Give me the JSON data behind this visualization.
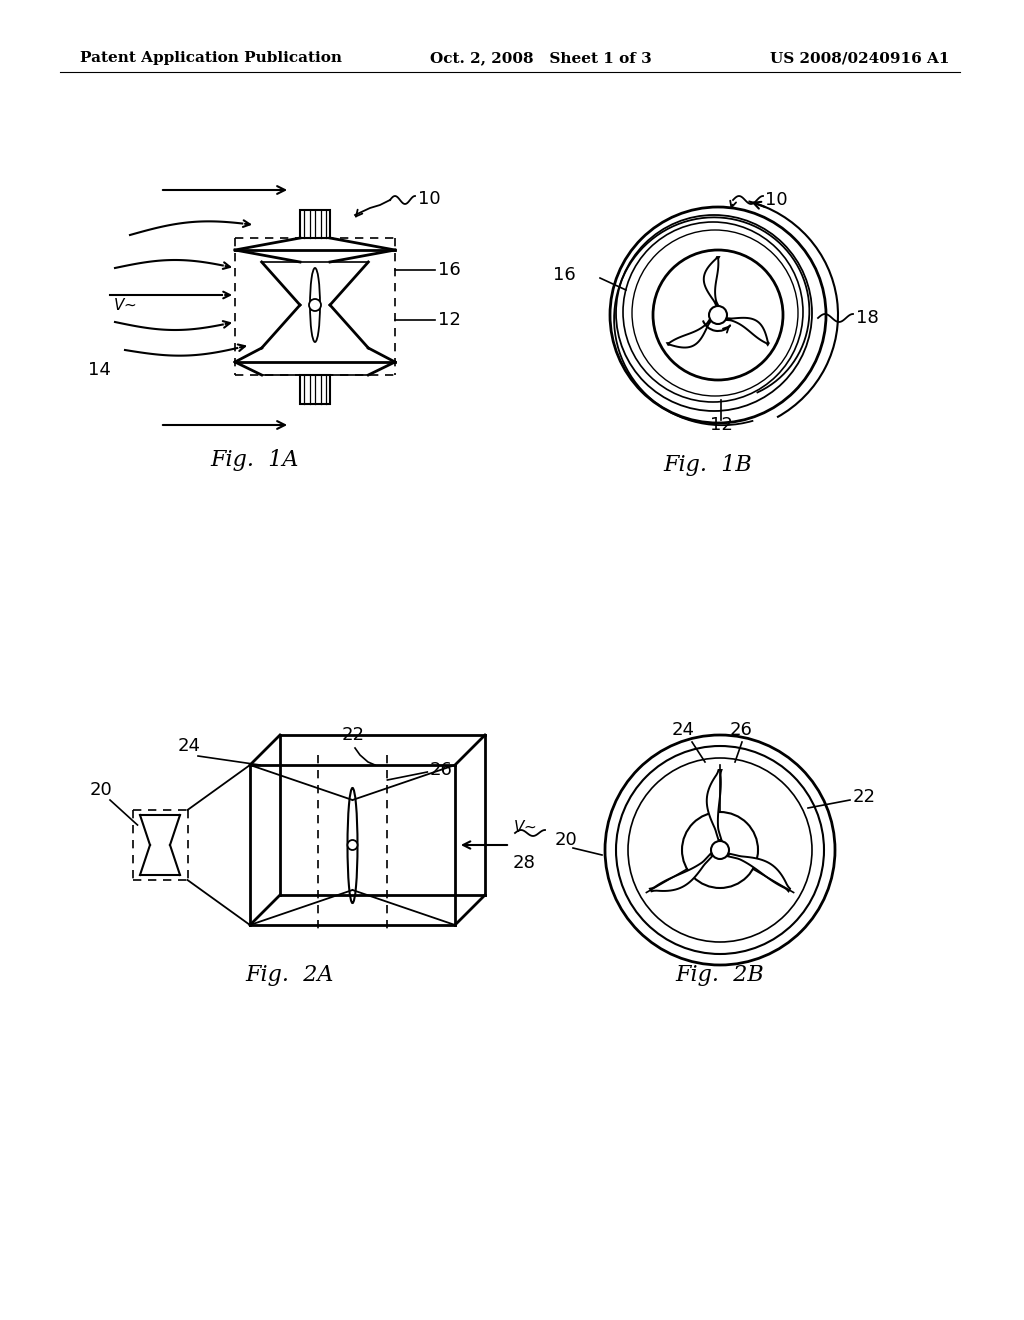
{
  "header_left": "Patent Application Publication",
  "header_mid": "Oct. 2, 2008   Sheet 1 of 3",
  "header_right": "US 2008/0240916 A1",
  "fig1a_label": "Fig.  1A",
  "fig1b_label": "Fig.  1B",
  "fig2a_label": "Fig.  2A",
  "fig2b_label": "Fig.  2B",
  "bg_color": "#ffffff",
  "line_color": "#000000",
  "font_size_header": 11,
  "font_size_label": 16,
  "font_size_ref": 13
}
